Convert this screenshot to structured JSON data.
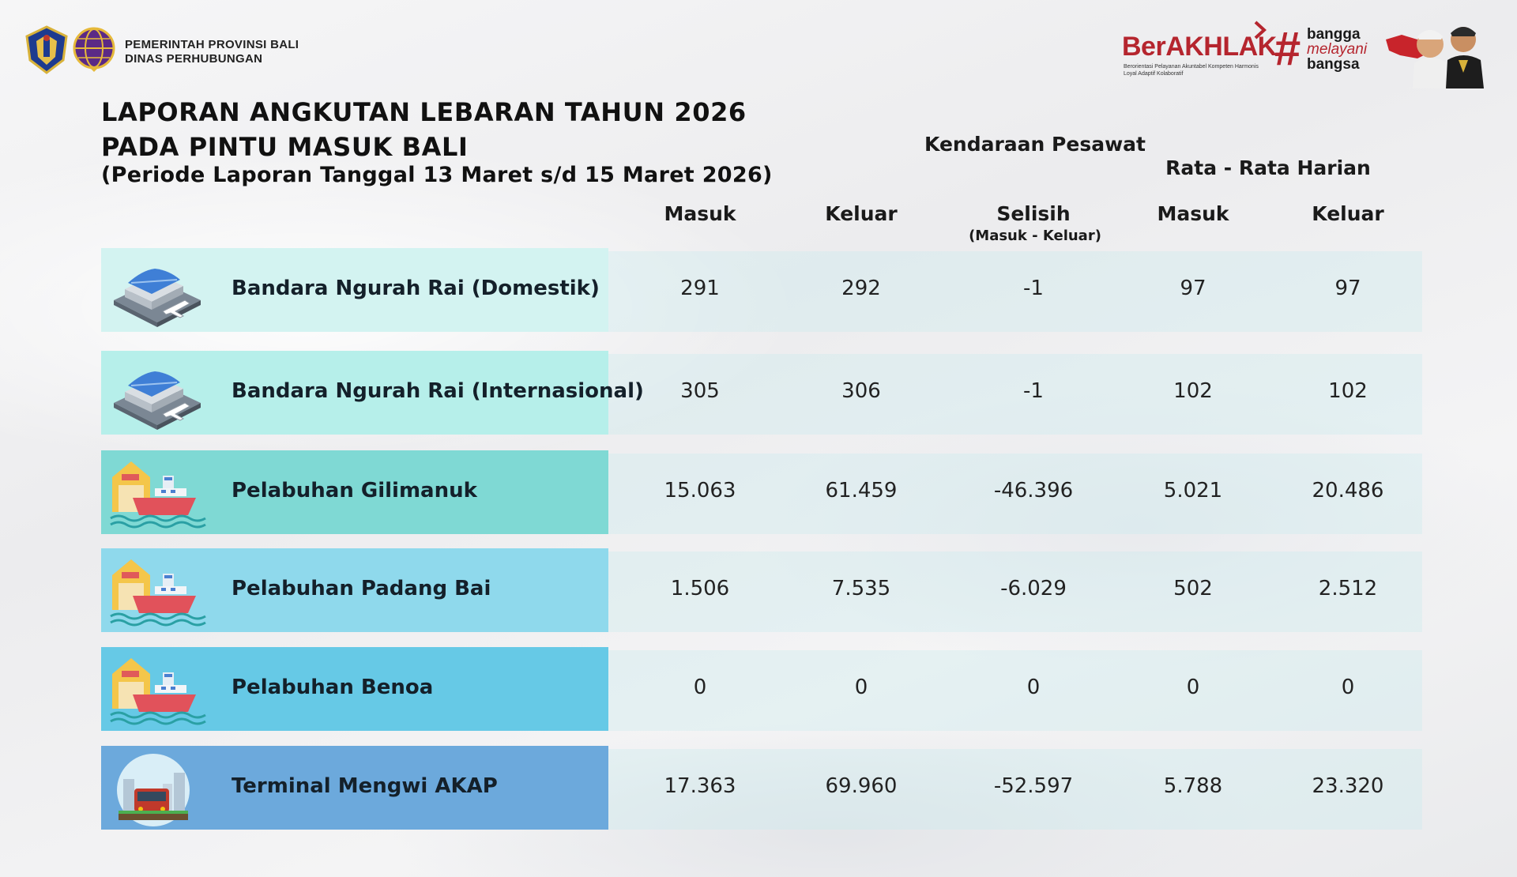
{
  "header": {
    "org_line1": "PEMERINTAH PROVINSI BALI",
    "org_line2": "DINAS PERHUBUNGAN",
    "logo_gov_icon": "bali-province-crest-icon",
    "logo_dishub_icon": "dishub-globe-icon",
    "berakhlak_title": "BerAKHLAK",
    "berakhlak_sub": "Berorientasi Pelayanan Akuntabel Kompeten Harmonis Loyal Adaptif Kolaboratif",
    "hashtag_lines": [
      "bangga",
      "melayani",
      "bangsa"
    ],
    "portrait_icon": "leader-portrait-icon"
  },
  "title": {
    "line1": "LAPORAN ANGKUTAN LEBARAN TAHUN 2026",
    "line2": "PADA PINTU MASUK BALI",
    "period": "(Periode Laporan Tanggal 13 Maret s/d 15 Maret 2026)"
  },
  "columns": {
    "group_vehicle": "Kendaraan Pesawat",
    "group_avg": "Rata - Rata Harian",
    "masuk": "Masuk",
    "keluar": "Keluar",
    "selisih": "Selisih",
    "selisih_sub": "(Masuk - Keluar)",
    "avg_masuk": "Masuk",
    "avg_keluar": "Keluar"
  },
  "rows": [
    {
      "name": "Bandara Ngurah Rai (Domestik)",
      "icon": "airport-icon",
      "masuk": "291",
      "keluar": "292",
      "selisih": "-1",
      "avg_masuk": "97",
      "avg_keluar": "97"
    },
    {
      "name": "Bandara Ngurah Rai (Internasional)",
      "icon": "airport-icon",
      "masuk": "305",
      "keluar": "306",
      "selisih": "-1",
      "avg_masuk": "102",
      "avg_keluar": "102"
    },
    {
      "name": "Pelabuhan Gilimanuk",
      "icon": "harbor-ship-icon",
      "masuk": "15.063",
      "keluar": "61.459",
      "selisih": "-46.396",
      "avg_masuk": "5.021",
      "avg_keluar": "20.486"
    },
    {
      "name": "Pelabuhan Padang Bai",
      "icon": "harbor-ship-icon",
      "masuk": "1.506",
      "keluar": "7.535",
      "selisih": "-6.029",
      "avg_masuk": "502",
      "avg_keluar": "2.512"
    },
    {
      "name": "Pelabuhan Benoa",
      "icon": "harbor-ship-icon",
      "masuk": "0",
      "keluar": "0",
      "selisih": "0",
      "avg_masuk": "0",
      "avg_keluar": "0"
    },
    {
      "name": "Terminal Mengwi AKAP",
      "icon": "bus-terminal-icon",
      "masuk": "17.363",
      "keluar": "69.960",
      "selisih": "-52.597",
      "avg_masuk": "5.788",
      "avg_keluar": "23.320"
    }
  ],
  "colors": {
    "row_label_bg": [
      "#d3f3f1",
      "#b6efea",
      "#7fd9d4",
      "#8fd9ec",
      "#66c9e6",
      "#6ca9dc"
    ],
    "brand_red": "#b5252e"
  }
}
